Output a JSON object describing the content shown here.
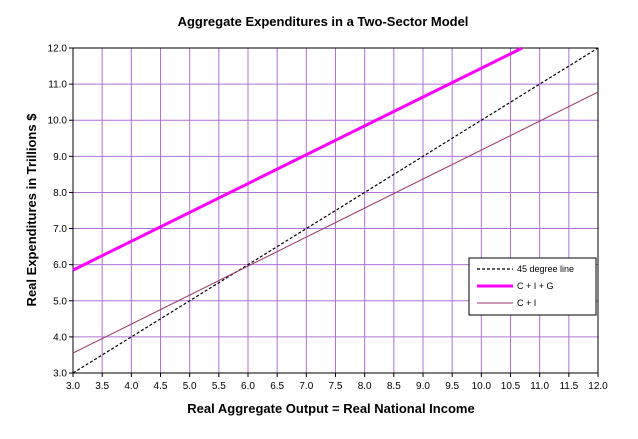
{
  "chart_data": {
    "type": "line",
    "title": "Aggregate Expenditures in a Two-Sector Model",
    "xlabel": "Real Aggregate Output = Real National Income",
    "ylabel": "Real Expenditures in Trillions $",
    "xlim": [
      3.0,
      12.0
    ],
    "ylim": [
      3.0,
      12.0
    ],
    "x_ticks": [
      "3.0",
      "3.5",
      "4.0",
      "4.5",
      "5.0",
      "5.5",
      "6.0",
      "6.5",
      "7.0",
      "7.5",
      "8.0",
      "8.5",
      "9.0",
      "9.5",
      "10.0",
      "10.5",
      "11.0",
      "11.5",
      "12.0"
    ],
    "y_ticks": [
      "3.0",
      "4.0",
      "5.0",
      "6.0",
      "7.0",
      "8.0",
      "9.0",
      "10.0",
      "11.0",
      "12.0"
    ],
    "grid": true,
    "legend_position": "lower-right",
    "plot_background": "#ffffff",
    "grid_color": "#b070d8",
    "series": [
      {
        "name": "45 degree line",
        "color": "#000000",
        "style": "dashed",
        "x": [
          3.0,
          12.0
        ],
        "y": [
          3.0,
          12.0
        ]
      },
      {
        "name": "C + I + G",
        "color": "#ff00ff",
        "style": "solid-thick",
        "x": [
          3.0,
          10.7
        ],
        "y": [
          5.85,
          12.0
        ]
      },
      {
        "name": "C + I",
        "color": "#993366",
        "style": "solid",
        "x": [
          3.0,
          12.0
        ],
        "y": [
          3.55,
          10.78
        ]
      }
    ]
  }
}
